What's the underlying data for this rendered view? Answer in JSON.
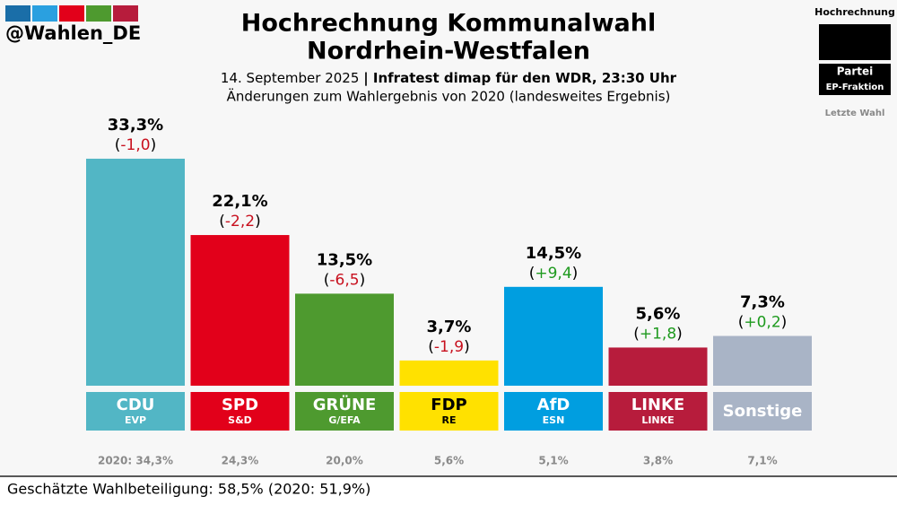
{
  "header": {
    "handle": "@Wahlen_DE",
    "legend_title": "Hochrechnung",
    "legend_party": "Partei",
    "legend_group": "EP-Fraktion",
    "legend_last": "Letzte Wahl"
  },
  "chart_data": {
    "type": "bar",
    "title_lines": [
      "Hochrechnung Kommunalwahl",
      "Nordrhein-Westfalen"
    ],
    "date": "14. September 2025",
    "source": "| Infratest dimap für den WDR, 23:30 Uhr",
    "subtitle": "Änderungen zum Wahlergebnis von 2020 (landesweites Ergebnis)",
    "categories": [
      "CDU",
      "SPD",
      "GRÜNE",
      "FDP",
      "AfD",
      "LINKE",
      "Sonstige"
    ],
    "groups": [
      "EVP",
      "S&D",
      "G/EFA",
      "RE",
      "ESN",
      "LINKE",
      null
    ],
    "values": [
      33.3,
      22.1,
      13.5,
      3.7,
      14.5,
      5.6,
      7.3
    ],
    "value_labels": [
      "33,3%",
      "22,1%",
      "13,5%",
      "3,7%",
      "14,5%",
      "5,6%",
      "7,3%"
    ],
    "changes": [
      -1.0,
      -2.2,
      -6.5,
      -1.9,
      9.4,
      1.8,
      0.2
    ],
    "change_labels": [
      "-1,0",
      "-2,2",
      "-6,5",
      "-1,9",
      "+9,4",
      "+1,8",
      "+0,2"
    ],
    "change_brackets": [
      "(",
      ")"
    ],
    "previous": [
      34.3,
      24.3,
      20.0,
      5.6,
      5.1,
      3.8,
      7.1
    ],
    "previous_labels": [
      "2020: 34,3%",
      "24,3%",
      "20,0%",
      "5,6%",
      "5,1%",
      "3,8%",
      "7,1%"
    ],
    "colors": [
      "#52b6c5",
      "#e2001a",
      "#4e9a2f",
      "#ffe100",
      "#009ee0",
      "#b71c3c",
      "#a9b4c6"
    ],
    "text_colors": [
      "#ffffff",
      "#ffffff",
      "#ffffff",
      "#000000",
      "#ffffff",
      "#ffffff",
      "#ffffff"
    ],
    "ylim": [
      0,
      40
    ]
  },
  "footer": {
    "turnout": "Geschätzte Wahlbeteiligung: 58,5% (2020: 51,9%)"
  }
}
